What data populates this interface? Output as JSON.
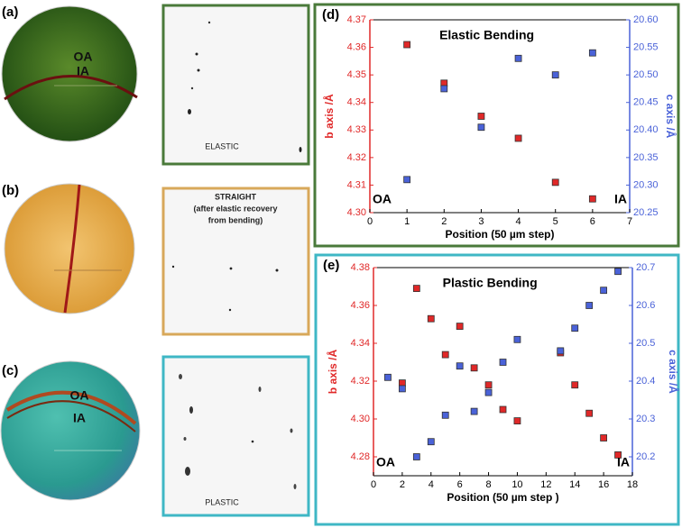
{
  "panels": {
    "a": "(a)",
    "b": "(b)",
    "c": "(c)",
    "a_oa": "OA",
    "a_ia": "IA",
    "c_oa": "OA",
    "c_ia": "IA",
    "elastic": "ELASTIC",
    "straight": [
      "STRAIGHT",
      "(after elastic  recovery",
      "from bending)"
    ],
    "plastic": "PLASTIC"
  },
  "chart_data": [
    {
      "type": "scatter",
      "panel_label": "(d)",
      "title": "Elastic Bending",
      "x_label": "Position (50 µm step)",
      "y_label": "b axis /Å",
      "y2_label": "c axis /Å",
      "annotations": [
        "OA",
        "IA"
      ],
      "xlim": [
        0,
        7
      ],
      "xticks": [
        0,
        1,
        2,
        3,
        4,
        5,
        6,
        7
      ],
      "ylim": [
        4.3,
        4.37
      ],
      "yticks": [
        {
          "value": 4.3,
          "label": "4.30"
        },
        4.31,
        4.32,
        4.33,
        4.34,
        4.35,
        4.36,
        4.37
      ],
      "y2lim": [
        20.25,
        20.6
      ],
      "y2ticks": [
        20.25,
        {
          "value": 20.3,
          "label": "20.30"
        },
        20.35,
        {
          "value": 20.4,
          "label": "20.40"
        },
        20.45,
        {
          "value": 20.5,
          "label": "20.50"
        },
        20.55,
        {
          "value": 20.6,
          "label": "20.60"
        }
      ],
      "series": [
        {
          "color": "#e02828",
          "x": [
            1,
            2,
            3,
            4,
            5,
            6
          ],
          "values": [
            4.361,
            4.347,
            4.335,
            4.327,
            4.311,
            4.305
          ]
        },
        {
          "color": "#4a62d8",
          "axis": "y2",
          "x": [
            1,
            2,
            3,
            4,
            5,
            6
          ],
          "values": [
            20.31,
            20.475,
            20.405,
            20.53,
            20.5,
            20.54
          ]
        }
      ]
    },
    {
      "type": "scatter",
      "panel_label": "(e)",
      "title": "Plastic Bending",
      "x_label": "Position (50 µm step )",
      "y_label": "b axis /Å",
      "y2_label": "c axis /Å",
      "annotations": [
        "OA",
        "IA"
      ],
      "xlim": [
        0,
        18
      ],
      "xticks": [
        0,
        2,
        4,
        6,
        8,
        10,
        12,
        14,
        16,
        18
      ],
      "ylim": [
        4.27,
        4.38
      ],
      "yticks": [
        4.28,
        {
          "value": 4.3,
          "label": "4.30"
        },
        4.32,
        4.34,
        4.36,
        4.38
      ],
      "y2lim": [
        20.15,
        20.7
      ],
      "y2ticks": [
        20.2,
        20.3,
        20.4,
        20.5,
        20.6,
        20.7
      ],
      "series": [
        {
          "color": "#e02828",
          "x": [
            2,
            3,
            4,
            5,
            6,
            7,
            8,
            9,
            10,
            13,
            14,
            15,
            16,
            17
          ],
          "values": [
            4.319,
            4.369,
            4.353,
            4.334,
            4.349,
            4.327,
            4.318,
            4.305,
            4.299,
            4.335,
            4.318,
            4.303,
            4.29,
            4.281
          ]
        },
        {
          "color": "#4a62d8",
          "axis": "y2",
          "x": [
            1,
            2,
            3,
            4,
            5,
            6,
            7,
            8,
            9,
            10,
            13,
            14,
            15,
            16,
            17
          ],
          "values": [
            20.41,
            20.38,
            20.2,
            20.24,
            20.31,
            20.44,
            20.32,
            20.37,
            20.45,
            20.51,
            20.48,
            20.54,
            20.6,
            20.64,
            20.69
          ]
        }
      ]
    }
  ]
}
